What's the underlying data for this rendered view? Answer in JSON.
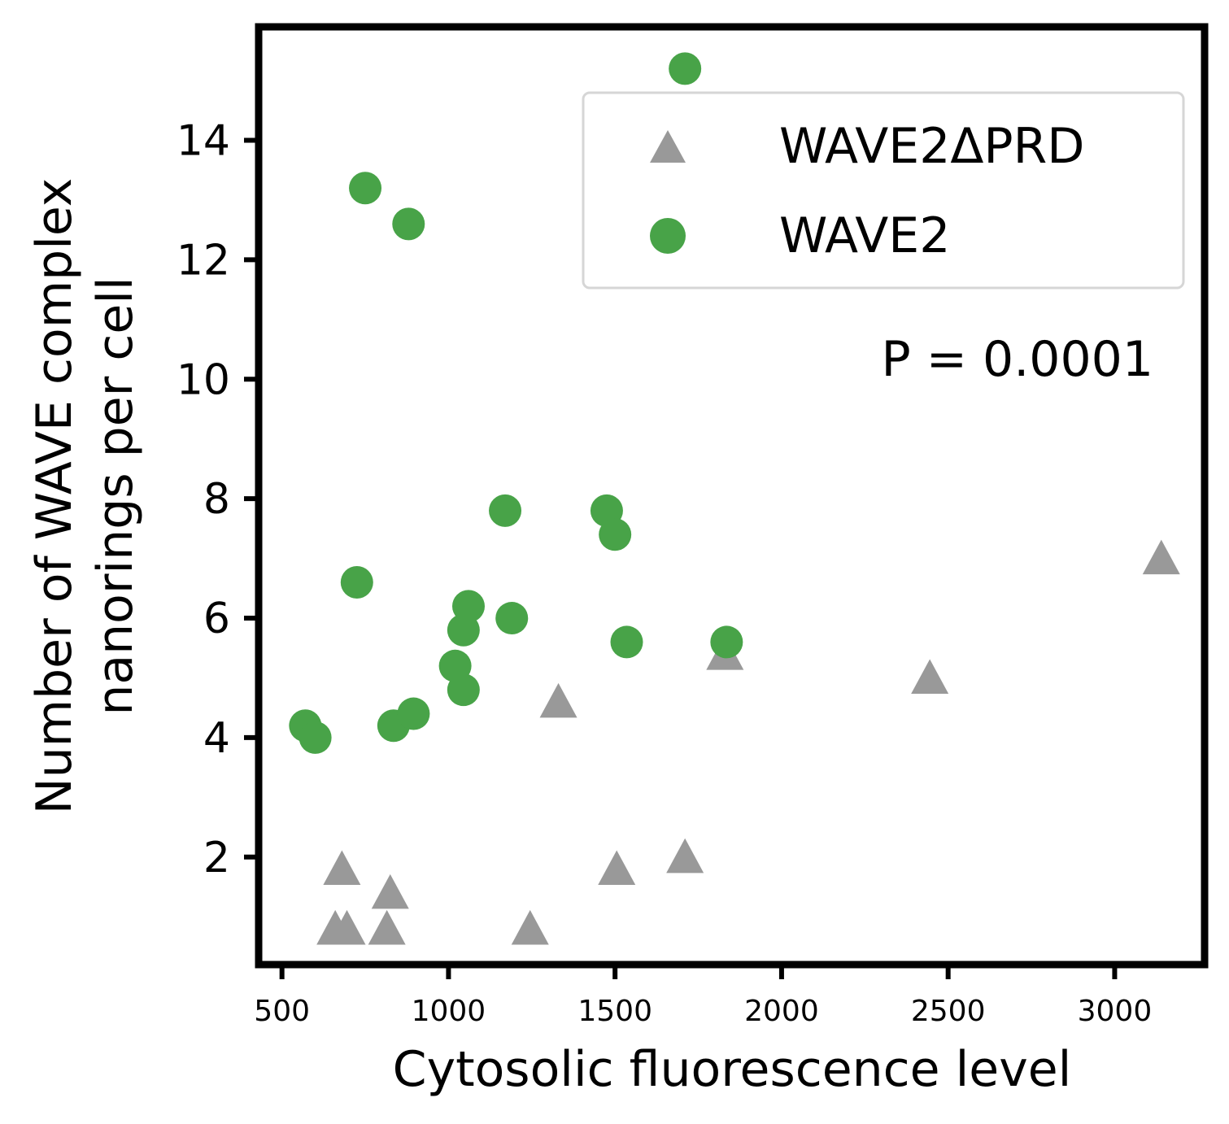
{
  "chart_data": {
    "type": "scatter",
    "xlabel": "Cytosolic fluorescence level",
    "ylabel": [
      "Number of WAVE complex",
      "nanorings per cell"
    ],
    "xlim": [
      430,
      3270
    ],
    "ylim": [
      0.2,
      15.9
    ],
    "xticks": [
      500,
      1000,
      1500,
      2000,
      2500,
      3000
    ],
    "yticks": [
      2,
      4,
      6,
      8,
      10,
      12,
      14
    ],
    "grid": false,
    "legend_position": "top-right",
    "annotation": "P = 0.0001",
    "series": [
      {
        "name": "WAVE2ΔPRD",
        "marker": "triangle",
        "color": "#999999",
        "points": [
          [
            660,
            0.8
          ],
          [
            695,
            0.8
          ],
          [
            680,
            1.8
          ],
          [
            815,
            0.8
          ],
          [
            825,
            1.4
          ],
          [
            1245,
            0.8
          ],
          [
            1330,
            4.6
          ],
          [
            1505,
            1.8
          ],
          [
            1710,
            2.0
          ],
          [
            1830,
            5.4
          ],
          [
            2445,
            5.0
          ],
          [
            3140,
            7.0
          ]
        ]
      },
      {
        "name": "WAVE2",
        "marker": "circle",
        "color": "#48a348",
        "points": [
          [
            570,
            4.2
          ],
          [
            600,
            4.0
          ],
          [
            725,
            6.6
          ],
          [
            750,
            13.2
          ],
          [
            880,
            12.6
          ],
          [
            835,
            4.2
          ],
          [
            895,
            4.4
          ],
          [
            1020,
            5.2
          ],
          [
            1045,
            4.8
          ],
          [
            1045,
            5.8
          ],
          [
            1060,
            6.2
          ],
          [
            1170,
            7.8
          ],
          [
            1190,
            6.0
          ],
          [
            1475,
            7.8
          ],
          [
            1500,
            7.4
          ],
          [
            1535,
            5.6
          ],
          [
            1835,
            5.6
          ],
          [
            1710,
            15.2
          ]
        ]
      }
    ]
  }
}
